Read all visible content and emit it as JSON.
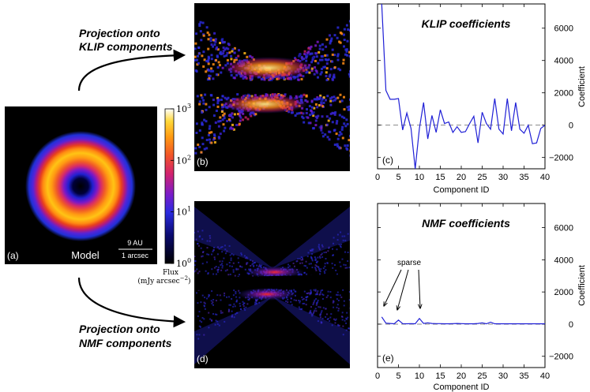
{
  "annotations": {
    "klip_projection": [
      "Projection onto",
      "KLIP components"
    ],
    "nmf_projection": [
      "Projection onto",
      "NMF components"
    ],
    "model_label": "Model",
    "scale_au": "9 AU",
    "scale_arcsec": "1 arcsec",
    "colorbar_label": [
      "Flux",
      "(mJy arcsec"
    ],
    "colorbar_label_exp": "−2",
    "colorbar_ticks": [
      {
        "base": "10",
        "exp": "0",
        "value": 1
      },
      {
        "base": "10",
        "exp": "1",
        "value": 10
      },
      {
        "base": "10",
        "exp": "2",
        "value": 100
      },
      {
        "base": "10",
        "exp": "3",
        "value": 1000
      }
    ],
    "panel_letters": {
      "a": "(a)",
      "b": "(b)",
      "c": "(c)",
      "d": "(d)",
      "e": "(e)"
    },
    "sparse_label": "sparse"
  },
  "chart_data": [
    {
      "type": "line",
      "title": "KLIP coefficients",
      "xlabel": "Component ID",
      "ylabel": "Coefficient",
      "xlim": [
        0,
        40
      ],
      "ylim": [
        -2700,
        7500
      ],
      "xticks": [
        0,
        5,
        10,
        15,
        20,
        25,
        30,
        35,
        40
      ],
      "yticks": [
        -2000,
        0,
        2000,
        4000,
        6000
      ],
      "color": "#1f1fd6",
      "reference_line": 0,
      "x": [
        1,
        2,
        3,
        4,
        5,
        6,
        7,
        8,
        9,
        10,
        11,
        12,
        13,
        14,
        15,
        16,
        17,
        18,
        19,
        20,
        21,
        22,
        23,
        24,
        25,
        26,
        27,
        28,
        29,
        30,
        31,
        32,
        33,
        34,
        35,
        36,
        37,
        38,
        39,
        40
      ],
      "y": [
        7500,
        2150,
        1600,
        1600,
        1650,
        -300,
        750,
        -200,
        -2700,
        -200,
        1400,
        -850,
        600,
        -450,
        950,
        100,
        200,
        -450,
        -100,
        -450,
        -400,
        100,
        550,
        -1100,
        800,
        100,
        -250,
        1650,
        -250,
        -550,
        1650,
        -350,
        1400,
        -250,
        -500,
        0,
        -1150,
        -1100,
        -200,
        0
      ]
    },
    {
      "type": "line",
      "title": "NMF coefficients",
      "xlabel": "Component ID",
      "ylabel": "Coefficient",
      "xlim": [
        0,
        40
      ],
      "ylim": [
        -2700,
        7500
      ],
      "xticks": [
        0,
        5,
        10,
        15,
        20,
        25,
        30,
        35,
        40
      ],
      "yticks": [
        -2000,
        0,
        2000,
        4000,
        6000
      ],
      "color": "#1f1fd6",
      "reference_line": 0,
      "x": [
        1,
        2,
        3,
        4,
        5,
        6,
        7,
        8,
        9,
        10,
        11,
        12,
        13,
        14,
        15,
        16,
        17,
        18,
        19,
        20,
        21,
        22,
        23,
        24,
        25,
        26,
        27,
        28,
        29,
        30,
        31,
        32,
        33,
        34,
        35,
        36,
        37,
        38,
        39,
        40
      ],
      "y": [
        450,
        60,
        40,
        20,
        250,
        30,
        20,
        30,
        20,
        350,
        40,
        80,
        40,
        30,
        30,
        20,
        20,
        30,
        40,
        30,
        20,
        20,
        20,
        40,
        80,
        20,
        120,
        20,
        20,
        20,
        20,
        20,
        20,
        20,
        20,
        20,
        20,
        20,
        20,
        20
      ]
    }
  ]
}
